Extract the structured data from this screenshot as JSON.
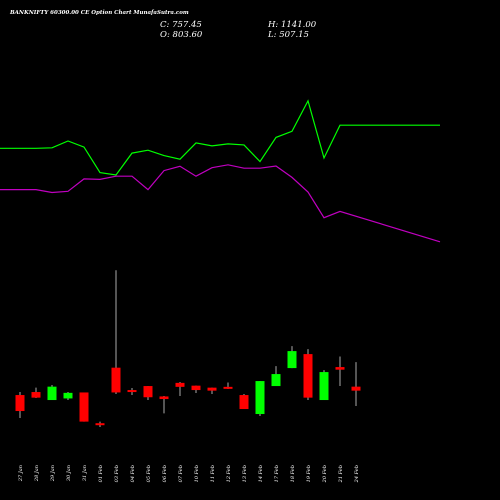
{
  "chart_data": {
    "type": "candlestick",
    "title": "BANKNIFTY 60300.00  CE Option  Chart MunafaSutra.com",
    "ohlc_labels": {
      "open": "O:",
      "high": "H:",
      "low": "L:",
      "close": "C:"
    },
    "summary": {
      "close": "757.45",
      "high": "1141.00",
      "open": "803.60",
      "low": "507.15"
    },
    "categories": [
      "27 Jan",
      "28 Jan",
      "29 Jan",
      "30 Jan",
      "31 Jan",
      "01 Feb",
      "03 Feb",
      "04 Feb",
      "05 Feb",
      "06 Feb",
      "07 Feb",
      "10 Feb",
      "11 Feb",
      "12 Feb",
      "13 Feb",
      "14 Feb",
      "17 Feb",
      "18 Feb",
      "19 Feb",
      "20 Feb",
      "21 Feb",
      "24 Feb"
    ],
    "price_ylim": [
      280,
      1141
    ],
    "candles": [
      {
        "open": 475,
        "high": 490,
        "low": 360,
        "close": 395
      },
      {
        "open": 490,
        "high": 512,
        "low": 460,
        "close": 462
      },
      {
        "open": 450,
        "high": 525,
        "low": 450,
        "close": 517
      },
      {
        "open": 458,
        "high": 490,
        "low": 450,
        "close": 486
      },
      {
        "open": 488,
        "high": 488,
        "low": 342,
        "close": 342
      },
      {
        "open": 334,
        "high": 342,
        "low": 315,
        "close": 330
      },
      {
        "open": 612,
        "high": 1100,
        "low": 480,
        "close": 488
      },
      {
        "open": 500,
        "high": 510,
        "low": 475,
        "close": 492
      },
      {
        "open": 520,
        "high": 520,
        "low": 450,
        "close": 464
      },
      {
        "open": 468,
        "high": 470,
        "low": 383,
        "close": 455
      },
      {
        "open": 536,
        "high": 540,
        "low": 470,
        "close": 516
      },
      {
        "open": 522,
        "high": 522,
        "low": 485,
        "close": 500
      },
      {
        "open": 512,
        "high": 512,
        "low": 480,
        "close": 497
      },
      {
        "open": 516,
        "high": 538,
        "low": 505,
        "close": 510
      },
      {
        "open": 475,
        "high": 480,
        "low": 405,
        "close": 405
      },
      {
        "open": 380,
        "high": 545,
        "low": 370,
        "close": 545
      },
      {
        "open": 520,
        "high": 620,
        "low": 520,
        "close": 580
      },
      {
        "open": 610,
        "high": 720,
        "low": 610,
        "close": 695
      },
      {
        "open": 680,
        "high": 705,
        "low": 450,
        "close": 462
      },
      {
        "open": 450,
        "high": 600,
        "low": 450,
        "close": 590
      },
      {
        "open": 615,
        "high": 668,
        "low": 520,
        "close": 602
      },
      {
        "open": 517,
        "high": 640,
        "low": 420,
        "close": 497
      }
    ],
    "series": [
      {
        "values": [
          760,
          760,
          762,
          790,
          765,
          660,
          650,
          740,
          752,
          730,
          715,
          782,
          770,
          778,
          774,
          705,
          805,
          830,
          955,
          720,
          855,
          855
        ]
      },
      {
        "values": [
          590,
          590,
          578,
          583,
          634,
          632,
          645,
          645,
          590,
          668,
          686,
          645,
          680,
          692,
          678,
          678,
          687,
          640,
          580,
          474,
          500,
          375
        ]
      }
    ],
    "colors": {
      "up": "#00ff00",
      "down": "#ff0000",
      "line1": "#00ff00",
      "line2": "#c000c0",
      "wick": "#aaaaaa"
    }
  }
}
